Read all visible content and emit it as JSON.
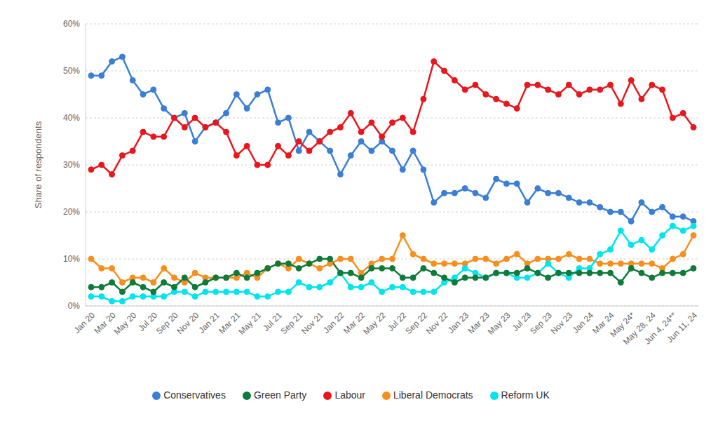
{
  "chart_data": {
    "type": "line",
    "y_label": "Share of respondents",
    "categories": [
      "Jan 20",
      null,
      "Mar 20",
      null,
      "May 20",
      null,
      "Jul 20",
      null,
      "Sep 20",
      null,
      "Nov 20",
      null,
      "Jan 21",
      null,
      "Mar 21",
      null,
      "May 21",
      null,
      "Jul 21",
      null,
      "Sep 21",
      null,
      "Nov 21",
      null,
      "Jan 22",
      null,
      "Mar 22",
      null,
      "May 22",
      null,
      "Jul 22",
      null,
      "Sep 22",
      null,
      "Nov 22",
      null,
      "Jan 23",
      null,
      "Mar 23",
      null,
      "May 23",
      null,
      "Jul 23",
      null,
      "Sep 23",
      null,
      "Nov 23",
      null,
      "Jan 24",
      null,
      "Mar 24",
      null,
      "May 24*",
      null,
      "May 28, 24",
      null,
      "Jun 4, 24**",
      null,
      "Jun 11, 24"
    ],
    "series": [
      {
        "name": "Conservatives",
        "color": "#3a7fd5",
        "values": [
          49,
          49,
          52,
          53,
          48,
          45,
          46,
          42,
          40,
          41,
          35,
          38,
          39,
          41,
          45,
          42,
          45,
          46,
          39,
          40,
          33,
          37,
          35,
          33,
          28,
          32,
          35,
          33,
          35,
          33,
          29,
          33,
          29,
          22,
          24,
          24,
          25,
          24,
          23,
          27,
          26,
          26,
          22,
          25,
          24,
          24,
          23,
          22,
          22,
          21,
          20,
          20,
          18,
          22,
          20,
          21,
          19,
          19,
          18
        ]
      },
      {
        "name": "Labour",
        "color": "#e8171d",
        "values": [
          29,
          30,
          28,
          32,
          33,
          37,
          36,
          36,
          40,
          38,
          40,
          38,
          39,
          37,
          32,
          34,
          30,
          30,
          34,
          32,
          35,
          33,
          35,
          37,
          38,
          41,
          37,
          39,
          36,
          39,
          40,
          37,
          44,
          52,
          50,
          48,
          46,
          47,
          45,
          44,
          43,
          42,
          47,
          47,
          46,
          45,
          47,
          45,
          46,
          46,
          47,
          43,
          48,
          44,
          47,
          46,
          40,
          41,
          38
        ]
      },
      {
        "name": "Liberal Democrats",
        "color": "#f78f1e",
        "values": [
          10,
          8,
          8,
          5,
          6,
          6,
          5,
          8,
          6,
          5,
          7,
          6,
          6,
          6,
          6,
          7,
          6,
          8,
          9,
          8,
          10,
          9,
          8,
          9,
          10,
          10,
          7,
          9,
          10,
          10,
          15,
          11,
          10,
          9,
          9,
          9,
          9,
          10,
          10,
          9,
          10,
          11,
          9,
          10,
          10,
          10,
          11,
          10,
          10,
          9,
          9,
          9,
          9,
          9,
          9,
          8,
          10,
          11,
          15
        ]
      },
      {
        "name": "Reform UK",
        "color": "#00e5ee",
        "values": [
          2,
          2,
          1,
          1,
          2,
          2,
          2,
          2,
          3,
          3,
          2,
          3,
          3,
          3,
          3,
          3,
          2,
          2,
          3,
          3,
          5,
          4,
          4,
          5,
          7,
          4,
          4,
          5,
          3,
          4,
          4,
          3,
          3,
          3,
          5,
          6,
          8,
          7,
          6,
          7,
          7,
          6,
          6,
          7,
          9,
          7,
          6,
          8,
          8,
          11,
          12,
          16,
          13,
          14,
          12,
          15,
          17,
          16,
          17
        ]
      },
      {
        "name": "Green Party",
        "color": "#0f7a3a",
        "values": [
          4,
          4,
          5,
          3,
          5,
          4,
          3,
          5,
          4,
          6,
          4,
          5,
          6,
          6,
          7,
          6,
          7,
          8,
          9,
          9,
          8,
          9,
          10,
          10,
          7,
          7,
          6,
          8,
          8,
          8,
          6,
          6,
          8,
          7,
          6,
          5,
          6,
          6,
          6,
          7,
          7,
          7,
          8,
          7,
          6,
          7,
          7,
          7,
          7,
          7,
          7,
          5,
          8,
          7,
          6,
          7,
          7,
          7,
          8
        ]
      }
    ],
    "ylim": [
      0,
      60
    ],
    "yticks": [
      {
        "value": 0,
        "label": "0%"
      },
      {
        "value": 10,
        "label": "10%"
      },
      {
        "value": 20,
        "label": "20%"
      },
      {
        "value": 30,
        "label": "30%"
      },
      {
        "value": 40,
        "label": "40%"
      },
      {
        "value": 50,
        "label": "50%"
      },
      {
        "value": 60,
        "label": "60%"
      }
    ],
    "grid": true,
    "legend": "bottom",
    "marker": "circle",
    "line_style": "solid"
  }
}
